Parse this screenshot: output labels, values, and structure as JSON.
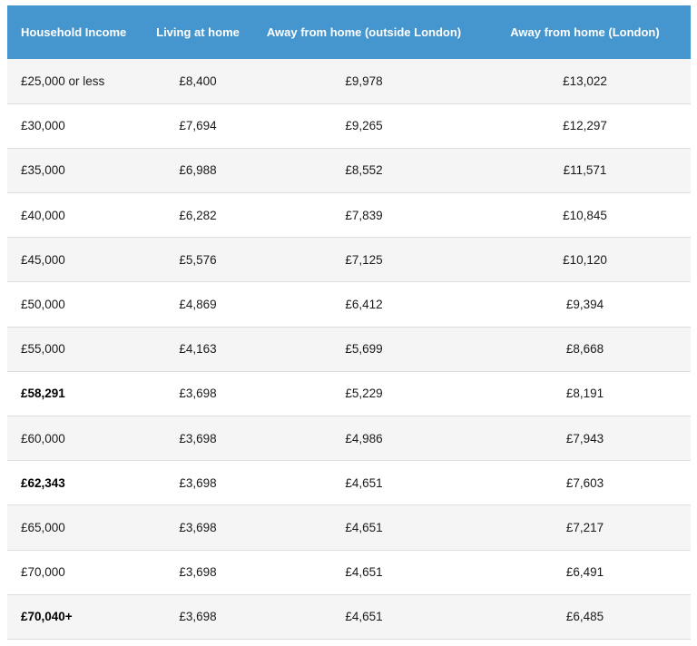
{
  "table": {
    "headers": [
      "Household Income",
      "Living at home",
      "Away from home (outside London)",
      "Away from home (London)"
    ],
    "rows": [
      {
        "income": "£25,000 or less",
        "home": "£8,400",
        "outside": "£9,978",
        "london": "£13,022",
        "bold": false
      },
      {
        "income": "£30,000",
        "home": "£7,694",
        "outside": "£9,265",
        "london": "£12,297",
        "bold": false
      },
      {
        "income": "£35,000",
        "home": "£6,988",
        "outside": "£8,552",
        "london": "£11,571",
        "bold": false
      },
      {
        "income": "£40,000",
        "home": "£6,282",
        "outside": "£7,839",
        "london": "£10,845",
        "bold": false
      },
      {
        "income": "£45,000",
        "home": "£5,576",
        "outside": "£7,125",
        "london": "£10,120",
        "bold": false
      },
      {
        "income": "£50,000",
        "home": "£4,869",
        "outside": "£6,412",
        "london": "£9,394",
        "bold": false
      },
      {
        "income": "£55,000",
        "home": "£4,163",
        "outside": "£5,699",
        "london": "£8,668",
        "bold": false
      },
      {
        "income": "£58,291",
        "home": "£3,698",
        "outside": "£5,229",
        "london": "£8,191",
        "bold": true
      },
      {
        "income": "£60,000",
        "home": "£3,698",
        "outside": "£4,986",
        "london": "£7,943",
        "bold": false
      },
      {
        "income": "£62,343",
        "home": "£3,698",
        "outside": "£4,651",
        "london": "£7,603",
        "bold": true
      },
      {
        "income": "£65,000",
        "home": "£3,698",
        "outside": "£4,651",
        "london": "£7,217",
        "bold": false
      },
      {
        "income": "£70,000",
        "home": "£3,698",
        "outside": "£4,651",
        "london": "£6,491",
        "bold": false
      },
      {
        "income": "£70,040+",
        "home": "£3,698",
        "outside": "£4,651",
        "london": "£6,485",
        "bold": true
      }
    ]
  }
}
